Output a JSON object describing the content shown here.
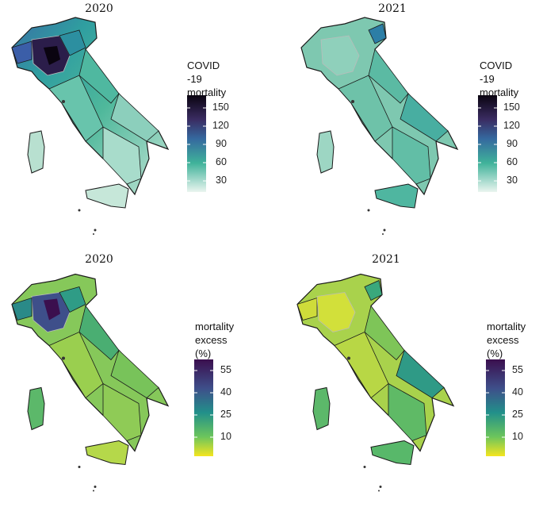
{
  "panels": [
    {
      "title": "2020",
      "legend_title_line1": "COVID -19",
      "legend_title_line2": "mortality rate",
      "scale": "mortality",
      "ticks": [
        "150",
        "120",
        "90",
        "60",
        "30"
      ]
    },
    {
      "title": "2021",
      "legend_title_line1": "COVID -19",
      "legend_title_line2": "mortality rate",
      "scale": "mortality",
      "ticks": [
        "150",
        "120",
        "90",
        "60",
        "30"
      ]
    },
    {
      "title": "2020",
      "legend_title_line1": "mortality",
      "legend_title_line2": "excess (%)",
      "scale": "excess",
      "ticks": [
        "55",
        "40",
        "25",
        "10"
      ]
    },
    {
      "title": "2021",
      "legend_title_line1": "mortality",
      "legend_title_line2": "excess (%)",
      "scale": "excess",
      "ticks": [
        "55",
        "40",
        "25",
        "10"
      ]
    }
  ],
  "colors": {
    "mortality_low": "#e6f2ec",
    "mortality_mid": "#3fb29a",
    "mortality_mid2": "#2d7aa6",
    "mortality_high": "#0a0410",
    "excess_low": "#f4e51f",
    "excess_mid": "#2fb37e",
    "excess_mid2": "#2d6f8e",
    "excess_high": "#3b0f4e",
    "border": "#1a1a1a"
  }
}
